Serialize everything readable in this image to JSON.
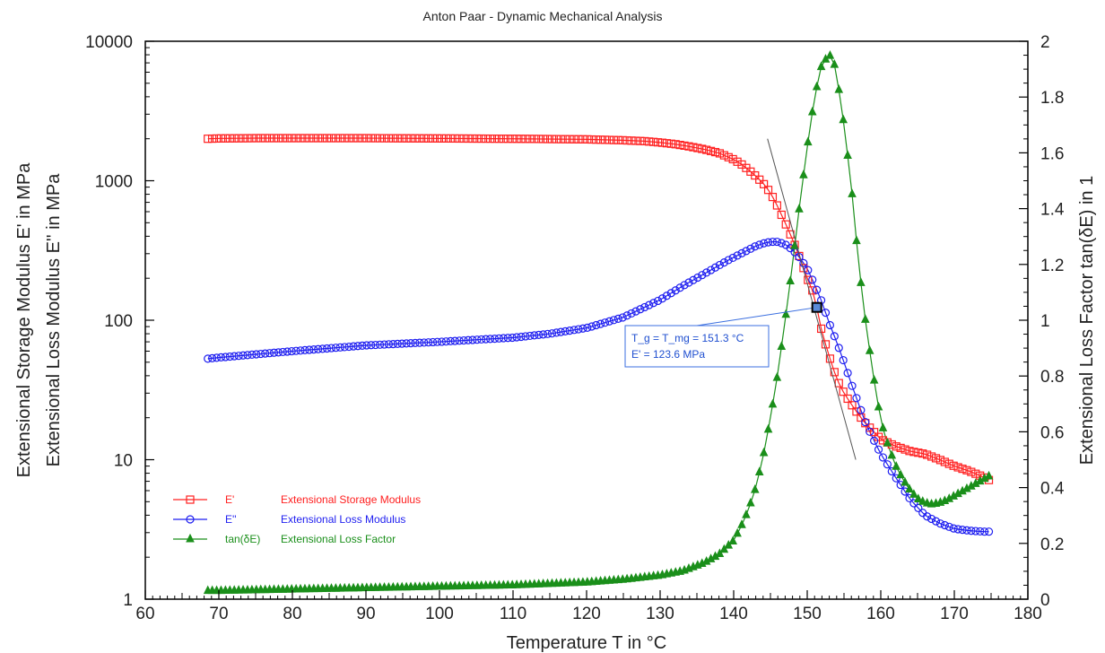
{
  "chart_data": {
    "type": "line",
    "title": "Anton Paar - Dynamic Mechanical Analysis",
    "xlabel": "Temperature T in °C",
    "ylabel_left_1": "Extensional Storage Modulus E' in MPa",
    "ylabel_left_2": "Extensional Loss Modulus E'' in MPa",
    "ylabel_right": "Extensional Loss Factor tan(δE) in 1",
    "xlim": [
      60,
      180
    ],
    "ylim_left": [
      1,
      10000
    ],
    "ylim_right": [
      0,
      2
    ],
    "left_scale": "log",
    "grid": false,
    "legend_placement": "bottom-left",
    "x_ticks": [
      "60",
      "70",
      "80",
      "90",
      "100",
      "110",
      "120",
      "130",
      "140",
      "150",
      "160",
      "170",
      "180"
    ],
    "y_left_ticks": [
      "1",
      "10",
      "100",
      "1000",
      "10000"
    ],
    "y_right_ticks": [
      "0",
      "0.2",
      "0.4",
      "0.6",
      "0.8",
      "1",
      "1.2",
      "1.4",
      "1.6",
      "1.8",
      "2"
    ],
    "series": [
      {
        "name": "E'",
        "description": "Extensional Storage Modulus",
        "axis": "left",
        "color": "#ff2020",
        "marker": "square",
        "x": [
          68.5,
          70,
          75,
          80,
          90,
          100,
          110,
          115,
          120,
          125,
          128,
          130,
          132,
          134,
          136,
          138,
          140,
          141,
          142,
          143,
          144,
          145,
          146,
          147,
          148,
          149,
          150,
          151,
          151.3,
          152,
          153,
          154,
          155,
          156,
          157,
          158,
          159,
          160,
          162,
          164,
          166,
          168,
          170,
          172,
          174,
          175
        ],
        "y": [
          2000,
          2010,
          2020,
          2020,
          2020,
          2010,
          2000,
          1990,
          1980,
          1950,
          1920,
          1880,
          1830,
          1760,
          1680,
          1580,
          1420,
          1320,
          1200,
          1080,
          960,
          820,
          650,
          500,
          380,
          280,
          200,
          150,
          123.6,
          82,
          55,
          38,
          30,
          25,
          21,
          18,
          16,
          14,
          12.5,
          11.5,
          11,
          10,
          9,
          8.3,
          7.5,
          7
        ]
      },
      {
        "name": "E''",
        "description": "Extensional Loss Modulus",
        "axis": "left",
        "color": "#1e1ef0",
        "marker": "circle",
        "x": [
          68.5,
          70,
          80,
          90,
          100,
          110,
          115,
          120,
          125,
          130,
          133,
          136,
          139,
          141,
          143,
          144,
          145,
          146,
          147,
          148,
          149,
          150,
          151,
          152,
          153,
          154,
          155,
          156,
          157,
          158,
          159,
          160,
          162,
          164,
          166,
          168,
          170,
          172,
          174,
          175
        ],
        "y": [
          53,
          54,
          60,
          66,
          70,
          75,
          80,
          88,
          105,
          140,
          175,
          215,
          265,
          300,
          340,
          355,
          365,
          365,
          350,
          320,
          280,
          235,
          180,
          135,
          95,
          70,
          50,
          35,
          25,
          18,
          14,
          11,
          7.5,
          5.2,
          4,
          3.5,
          3.2,
          3.1,
          3.05,
          3.05
        ]
      },
      {
        "name": "tan(δE)",
        "description": "Extensional Loss Factor",
        "axis": "right",
        "color": "#1a8f1a",
        "marker": "triangle",
        "x": [
          68.5,
          70,
          80,
          90,
          100,
          110,
          120,
          125,
          130,
          133,
          136,
          138,
          140,
          141,
          142,
          143,
          144,
          145,
          146,
          147,
          148,
          149,
          150,
          151,
          152,
          153,
          153.5,
          154,
          155,
          156,
          157,
          158,
          159,
          160,
          161,
          162,
          163,
          164,
          165,
          166,
          167,
          168,
          169,
          170,
          171,
          172,
          173,
          174,
          175
        ],
        "y": [
          0.03,
          0.03,
          0.035,
          0.04,
          0.045,
          0.05,
          0.06,
          0.07,
          0.085,
          0.1,
          0.13,
          0.16,
          0.21,
          0.26,
          0.32,
          0.4,
          0.51,
          0.65,
          0.81,
          1.0,
          1.2,
          1.42,
          1.62,
          1.8,
          1.92,
          1.95,
          1.94,
          1.88,
          1.7,
          1.48,
          1.2,
          0.98,
          0.8,
          0.64,
          0.55,
          0.48,
          0.43,
          0.39,
          0.36,
          0.345,
          0.34,
          0.345,
          0.355,
          0.37,
          0.385,
          0.4,
          0.415,
          0.43,
          0.445
        ]
      }
    ],
    "tangent_line": {
      "x": [
        144.6,
        156.6
      ],
      "y": [
        2000,
        10
      ]
    },
    "annotation": {
      "point": {
        "x": 151.3,
        "y": 123.6
      },
      "line1": "T_g = T_mg = 151.3 °C",
      "line2": "E' = 123.6 MPa"
    }
  }
}
